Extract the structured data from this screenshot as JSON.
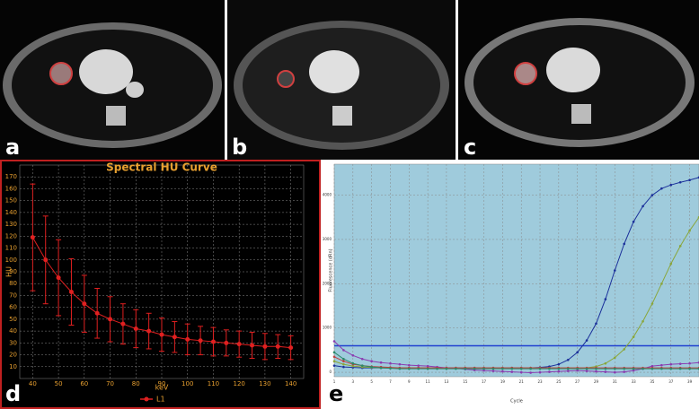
{
  "panels": [
    "a",
    "b",
    "c",
    "d",
    "e"
  ],
  "chart_data": [
    {
      "type": "line",
      "title": "Spectral HU Curve",
      "x_label": "keV",
      "y_label": "HU",
      "background": "#000000",
      "text_color": "#e8a030",
      "grid": true,
      "markers": true,
      "legend": "bottom",
      "x": [
        40,
        45,
        50,
        55,
        60,
        65,
        70,
        75,
        80,
        85,
        90,
        95,
        100,
        105,
        110,
        115,
        120,
        125,
        130,
        135,
        140
      ],
      "series": [
        {
          "name": "L1",
          "color": "#e02020",
          "values": [
            119,
            100,
            85,
            73,
            63,
            55,
            50,
            46,
            42,
            40,
            37,
            35,
            33,
            32,
            31,
            30,
            29,
            28,
            27,
            27,
            26
          ],
          "errors": [
            45,
            37,
            32,
            28,
            24,
            21,
            19,
            17,
            16,
            15,
            14,
            13,
            13,
            12,
            12,
            11,
            11,
            11,
            11,
            10,
            10
          ]
        }
      ],
      "xlim": [
        35,
        145
      ],
      "xticks": [
        40,
        50,
        60,
        70,
        80,
        90,
        100,
        110,
        120,
        130,
        140
      ],
      "ylim": [
        0,
        180
      ],
      "yticks": [
        10,
        20,
        30,
        40,
        50,
        60,
        70,
        80,
        90,
        100,
        110,
        120,
        130,
        140,
        150,
        160,
        170
      ]
    },
    {
      "type": "line",
      "x_label": "Cycle",
      "y_label": "Fluorescence (dRn)",
      "background": "#9fcbdc",
      "text_color": "#333333",
      "grid": true,
      "markers": true,
      "threshold": 600,
      "threshold_color": "#2040d0",
      "x": [
        1,
        2,
        3,
        4,
        5,
        6,
        7,
        8,
        9,
        10,
        11,
        12,
        13,
        14,
        15,
        16,
        17,
        18,
        19,
        20,
        21,
        22,
        23,
        24,
        25,
        26,
        27,
        28,
        29,
        30,
        31,
        32,
        33,
        34,
        35,
        36,
        37,
        38,
        39,
        40
      ],
      "series": [
        {
          "color": "#1a2f9a",
          "values": [
            150,
            120,
            110,
            100,
            100,
            100,
            100,
            100,
            100,
            100,
            100,
            100,
            100,
            100,
            100,
            100,
            100,
            100,
            100,
            100,
            100,
            100,
            110,
            130,
            180,
            280,
            450,
            720,
            1100,
            1650,
            2300,
            2900,
            3400,
            3750,
            4000,
            4150,
            4230,
            4290,
            4340,
            4400
          ]
        },
        {
          "color": "#8aa63a",
          "values": [
            250,
            180,
            140,
            120,
            110,
            100,
            100,
            100,
            100,
            100,
            100,
            100,
            100,
            100,
            100,
            100,
            100,
            100,
            100,
            100,
            100,
            100,
            100,
            100,
            100,
            100,
            100,
            100,
            130,
            200,
            330,
            520,
            800,
            1150,
            1550,
            2000,
            2450,
            2850,
            3200,
            3500
          ]
        },
        {
          "color": "#8a3ab0",
          "values": [
            700,
            500,
            380,
            300,
            250,
            220,
            200,
            180,
            160,
            150,
            140,
            120,
            100,
            90,
            70,
            50,
            40,
            30,
            20,
            10,
            0,
            -10,
            0,
            10,
            20,
            30,
            40,
            30,
            20,
            10,
            0,
            10,
            40,
            80,
            140,
            160,
            180,
            190,
            200,
            220
          ]
        },
        {
          "color": "#c04040",
          "values": [
            350,
            250,
            180,
            150,
            130,
            120,
            110,
            100,
            100,
            100,
            100,
            100,
            100,
            100,
            100,
            100,
            100,
            100,
            100,
            100,
            100,
            100,
            100,
            100,
            100,
            100,
            100,
            100,
            100,
            100,
            100,
            100,
            100,
            100,
            100,
            100,
            100,
            100,
            100,
            100
          ]
        },
        {
          "color": "#2a8a6a",
          "values": [
            450,
            300,
            200,
            150,
            120,
            100,
            90,
            80,
            80,
            80,
            80,
            80,
            80,
            80,
            80,
            80,
            80,
            80,
            80,
            80,
            80,
            80,
            80,
            80,
            80,
            80,
            80,
            80,
            80,
            80,
            80,
            80,
            80,
            80,
            80,
            80,
            80,
            80,
            80,
            80
          ]
        }
      ],
      "xlim": [
        1,
        40
      ],
      "xticks": [
        1,
        3,
        5,
        7,
        9,
        11,
        13,
        15,
        17,
        19,
        21,
        23,
        25,
        27,
        29,
        31,
        33,
        35,
        37,
        39
      ],
      "ylim": [
        -100,
        4700
      ],
      "yticks": [
        0,
        1000,
        2000,
        3000,
        4000
      ]
    }
  ]
}
